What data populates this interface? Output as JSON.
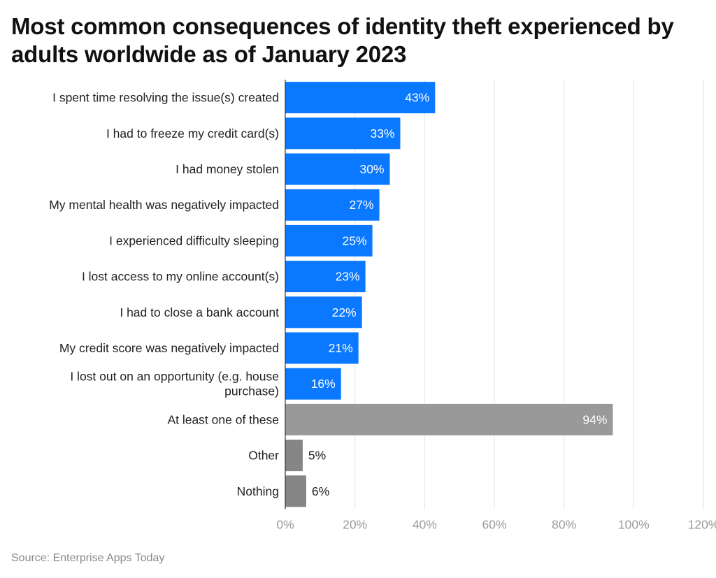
{
  "title": "Most common consequences of identity theft experienced by adults worldwide as of January 2023",
  "source": "Source: Enterprise Apps Today",
  "chart_data": {
    "type": "bar",
    "orientation": "horizontal",
    "title": "Most common consequences of identity theft experienced by adults worldwide as of January 2023",
    "xlabel": "",
    "ylabel": "",
    "xlim": [
      0,
      120
    ],
    "ticks": [
      "0%",
      "20%",
      "40%",
      "60%",
      "80%",
      "100%",
      "120%"
    ],
    "tick_values": [
      0,
      20,
      40,
      60,
      80,
      100,
      120
    ],
    "grid": true,
    "legend": "none",
    "colors": {
      "primary": "#0a78ff",
      "secondary": "#999999",
      "tertiary": "#858585"
    },
    "categories": [
      [
        "I spent time resolving the issue(s) created"
      ],
      [
        "I had to freeze my credit card(s)"
      ],
      [
        "I had money stolen"
      ],
      [
        "My mental health was negatively impacted"
      ],
      [
        "I experienced difficulty sleeping"
      ],
      [
        "I lost access to my online account(s)"
      ],
      [
        "I had to close a bank account"
      ],
      [
        "My credit score was negatively impacted"
      ],
      [
        "I lost out on an opportunity (e.g. house",
        "purchase)"
      ],
      [
        "At least one of these"
      ],
      [
        "Other"
      ],
      [
        "Nothing"
      ]
    ],
    "values": [
      43,
      33,
      30,
      27,
      25,
      23,
      22,
      21,
      16,
      94,
      5,
      6
    ],
    "value_labels": [
      "43%",
      "33%",
      "30%",
      "27%",
      "25%",
      "23%",
      "22%",
      "21%",
      "16%",
      "94%",
      "5%",
      "6%"
    ],
    "bar_color_keys": [
      "primary",
      "primary",
      "primary",
      "primary",
      "primary",
      "primary",
      "primary",
      "primary",
      "primary",
      "secondary",
      "tertiary",
      "tertiary"
    ]
  }
}
